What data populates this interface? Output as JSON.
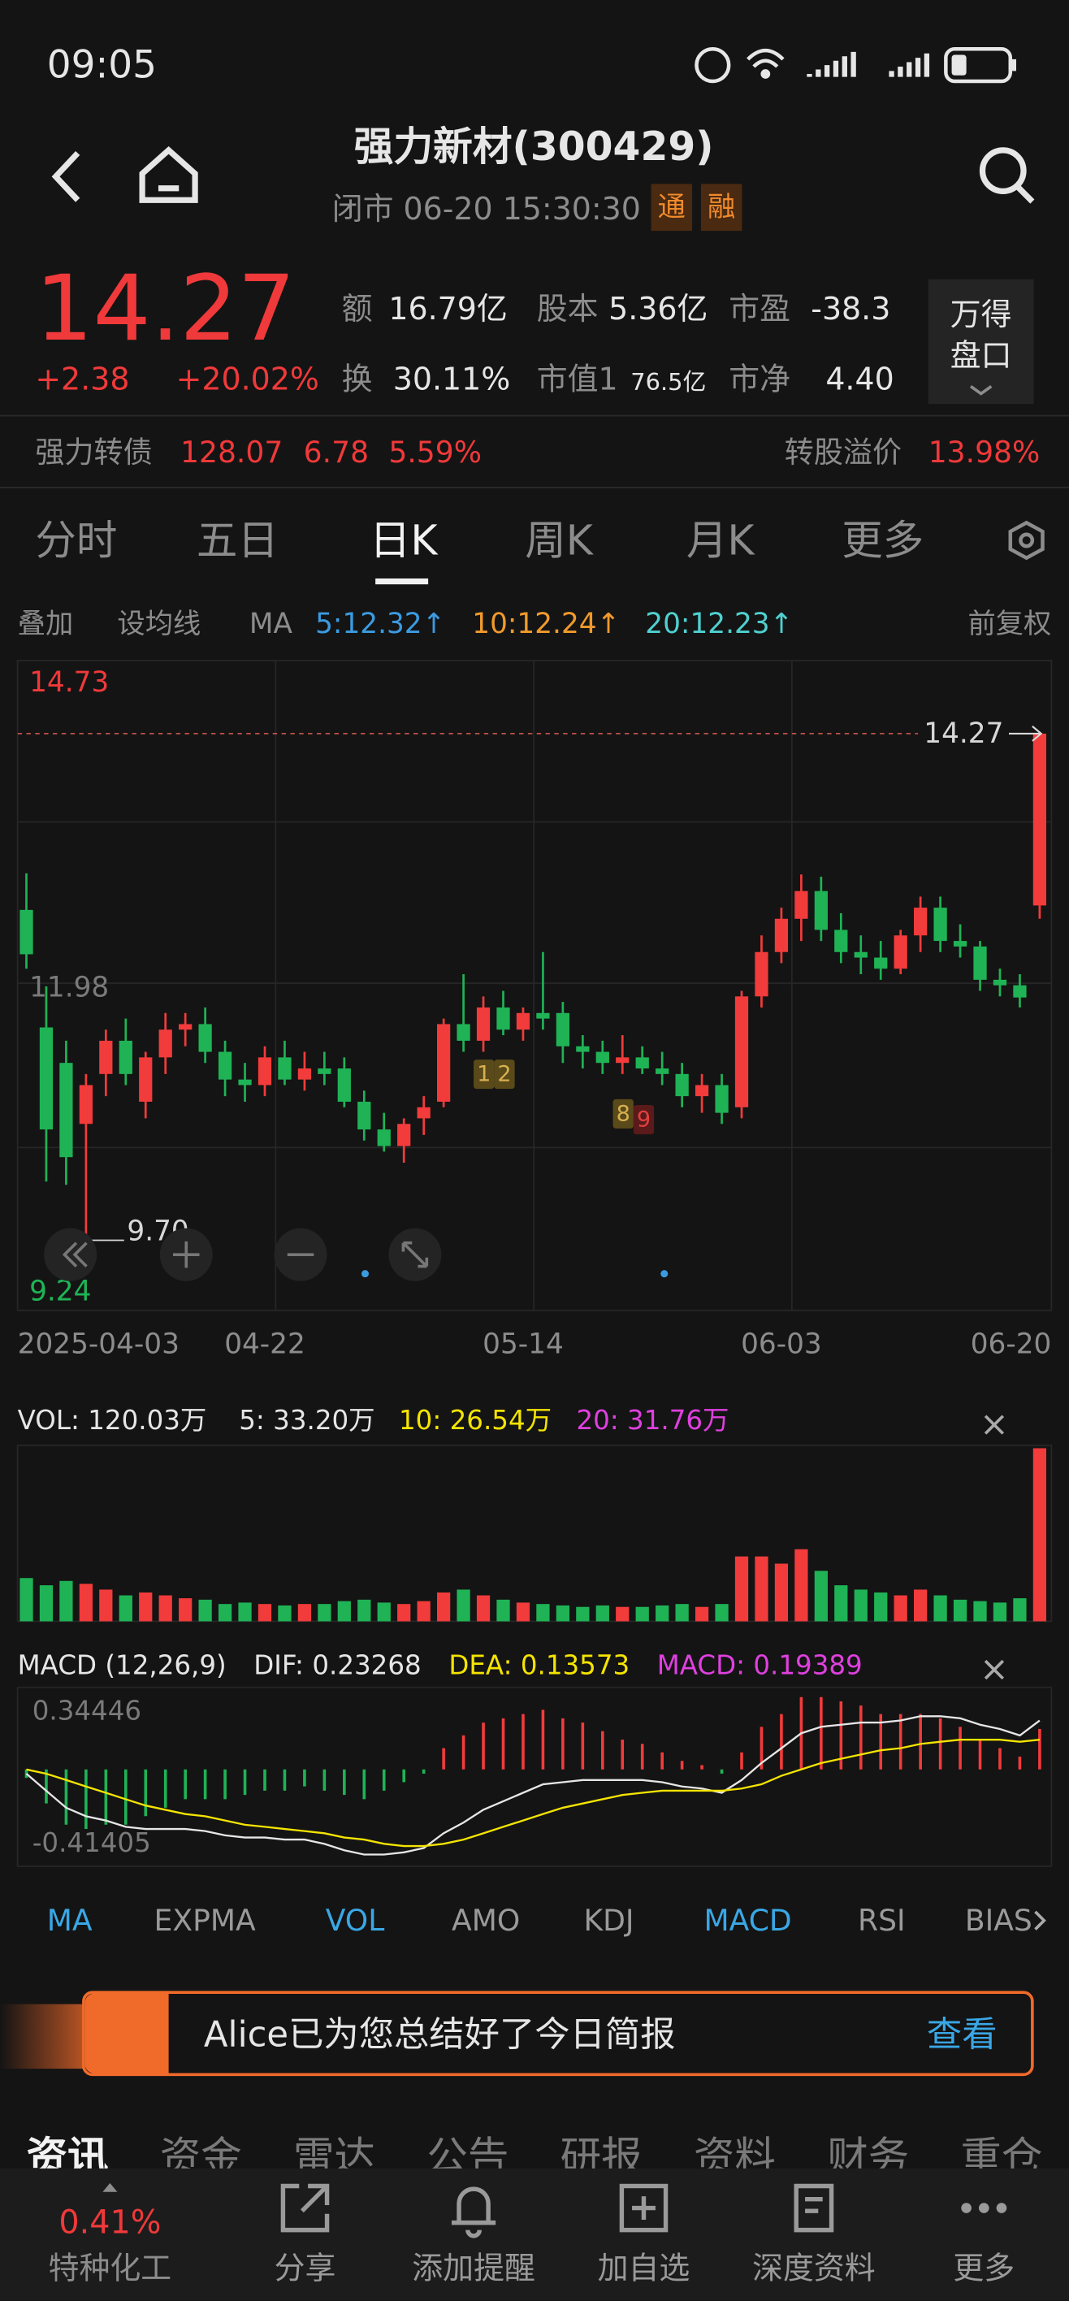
{
  "status": {
    "time": "09:05"
  },
  "header": {
    "title": "强力新材(300429)",
    "subtitle": "闭市 06-20 15:30:30",
    "tags": [
      "通",
      "融"
    ]
  },
  "quote": {
    "price": "14.27",
    "change": "+2.38",
    "change_pct": "+20.02%",
    "stats": [
      {
        "label": "额",
        "value": "16.79亿"
      },
      {
        "label": "股本",
        "value": "5.36亿"
      },
      {
        "label": "市盈",
        "value": "-38.3"
      },
      {
        "label": "换",
        "value": "30.11%"
      },
      {
        "label": "市值1",
        "value": "76.5亿"
      },
      {
        "label": "市净",
        "value": "4.40"
      }
    ],
    "button": [
      "万得",
      "盘口"
    ]
  },
  "bond": {
    "name": "强力转债",
    "price": "128.07",
    "change": "6.78",
    "change_pct": "5.59%",
    "premium_label": "转股溢价",
    "premium": "13.98%"
  },
  "tabs": {
    "items": [
      "分时",
      "五日",
      "日K",
      "周K",
      "月K",
      "更多"
    ],
    "active": 2
  },
  "toolbar": {
    "overlay": "叠加",
    "set_ma": "设均线",
    "ma": "MA",
    "ma_values": [
      "5:12.32↑",
      "10:12.24↑",
      "20:12.23↑"
    ],
    "ma_colors": [
      "#3b9be0",
      "#f09a2c",
      "#4fd0d0"
    ],
    "adjust": "前复权"
  },
  "chart_data": [
    {
      "type": "candlestick",
      "categories": [
        "2025-04-03",
        null,
        null,
        null,
        null,
        null,
        null,
        null,
        null,
        null,
        null,
        null,
        "04-22",
        null,
        null,
        null,
        null,
        null,
        null,
        null,
        null,
        null,
        null,
        null,
        null,
        "05-14",
        null,
        null,
        null,
        null,
        null,
        null,
        null,
        null,
        null,
        null,
        null,
        null,
        "06-03",
        null,
        null,
        null,
        null,
        null,
        null,
        null,
        null,
        null,
        null,
        null,
        null,
        "06-20"
      ],
      "open": [
        12.68,
        11.62,
        11.3,
        10.75,
        11.2,
        11.5,
        10.95,
        11.35,
        11.6,
        11.65,
        11.4,
        11.15,
        11.1,
        11.35,
        11.15,
        11.25,
        11.25,
        10.95,
        10.7,
        10.55,
        10.8,
        10.95,
        11.65,
        11.5,
        11.8,
        11.6,
        11.75,
        11.75,
        11.45,
        11.4,
        11.3,
        11.35,
        11.25,
        11.2,
        11.0,
        11.1,
        10.9,
        11.9,
        12.3,
        12.6,
        12.85,
        12.5,
        12.3,
        12.25,
        12.15,
        12.45,
        12.7,
        12.4,
        12.35,
        12.05,
        12.0,
        12.72
      ],
      "high": [
        13.01,
        11.99,
        11.5,
        11.2,
        11.6,
        11.7,
        11.4,
        11.75,
        11.75,
        11.8,
        11.5,
        11.3,
        11.45,
        11.5,
        11.4,
        11.4,
        11.35,
        11.05,
        10.85,
        10.8,
        11.0,
        11.7,
        12.1,
        11.9,
        11.95,
        11.8,
        12.3,
        11.85,
        11.55,
        11.5,
        11.55,
        11.45,
        11.4,
        11.3,
        11.2,
        11.2,
        11.95,
        12.45,
        12.7,
        13.0,
        12.98,
        12.65,
        12.45,
        12.4,
        12.5,
        12.8,
        12.8,
        12.55,
        12.4,
        12.15,
        12.1,
        14.27
      ],
      "low": [
        12.15,
        10.23,
        10.2,
        9.7,
        11.0,
        11.1,
        10.8,
        11.2,
        11.45,
        11.3,
        11.0,
        10.95,
        11.0,
        11.1,
        11.05,
        11.1,
        10.9,
        10.6,
        10.5,
        10.4,
        10.65,
        10.9,
        11.4,
        11.4,
        11.55,
        11.5,
        11.6,
        11.3,
        11.25,
        11.2,
        11.2,
        11.2,
        11.1,
        10.9,
        10.85,
        10.75,
        10.8,
        11.8,
        12.2,
        12.4,
        12.4,
        12.2,
        12.1,
        12.05,
        12.1,
        12.3,
        12.3,
        12.25,
        11.95,
        11.9,
        11.8,
        12.6
      ],
      "close": [
        12.28,
        10.7,
        10.45,
        11.1,
        11.5,
        11.2,
        11.35,
        11.6,
        11.65,
        11.4,
        11.15,
        11.1,
        11.35,
        11.15,
        11.25,
        11.2,
        10.95,
        10.7,
        10.55,
        10.75,
        10.9,
        11.65,
        11.5,
        11.8,
        11.6,
        11.75,
        11.7,
        11.45,
        11.4,
        11.3,
        11.35,
        11.25,
        11.2,
        11.0,
        11.1,
        10.85,
        11.9,
        12.3,
        12.6,
        12.85,
        12.5,
        12.3,
        12.25,
        12.15,
        12.45,
        12.7,
        12.4,
        12.35,
        12.05,
        12.0,
        11.89,
        14.27
      ],
      "ylim": [
        9.24,
        14.73
      ],
      "yticks": [
        9.24,
        11.98,
        14.73
      ],
      "ytick_colors": [
        "#1fb356",
        "#7a7a7a",
        "#f0393a"
      ],
      "up_color": "#f23b3b",
      "down_color": "#1fb356",
      "last_price": 14.27,
      "low_marker": {
        "value": 9.7,
        "label": "9.70"
      },
      "markers": [
        "1",
        "2",
        "8",
        "9"
      ]
    },
    {
      "type": "bar",
      "name": "VOL",
      "values": [
        30,
        25,
        28,
        26,
        22,
        18,
        20,
        18,
        16,
        15,
        12,
        13,
        12,
        11,
        12,
        12,
        14,
        15,
        13,
        12,
        14,
        20,
        22,
        18,
        15,
        13,
        12,
        11,
        10,
        11,
        10,
        10,
        11,
        12,
        10,
        12,
        45,
        45,
        40,
        50,
        35,
        25,
        22,
        20,
        18,
        22,
        18,
        15,
        14,
        13,
        16,
        120.03
      ],
      "legend": [
        "VOL: 120.03万",
        "5: 33.20万",
        "10: 26.54万",
        "20: 31.76万"
      ],
      "legend_colors": [
        "#e6e6e6",
        "#e6e6e6",
        "#f5e400",
        "#e040e0"
      ],
      "up_color": "#f23b3b",
      "down_color": "#1fb356"
    },
    {
      "type": "macd",
      "title": "MACD (12,26,9)",
      "legend": [
        "DIF: 0.23268",
        "DEA: 0.13573",
        "MACD: 0.19389"
      ],
      "legend_colors": [
        "#e6e6e6",
        "#f5e400",
        "#e040e0"
      ],
      "dif": [
        -0.02,
        -0.1,
        -0.18,
        -0.22,
        -0.24,
        -0.27,
        -0.28,
        -0.28,
        -0.28,
        -0.29,
        -0.31,
        -0.32,
        -0.32,
        -0.33,
        -0.33,
        -0.35,
        -0.38,
        -0.4,
        -0.4,
        -0.39,
        -0.37,
        -0.3,
        -0.25,
        -0.19,
        -0.15,
        -0.11,
        -0.07,
        -0.06,
        -0.05,
        -0.05,
        -0.05,
        -0.05,
        -0.06,
        -0.08,
        -0.09,
        -0.11,
        -0.05,
        0.03,
        0.1,
        0.17,
        0.2,
        0.21,
        0.22,
        0.22,
        0.23,
        0.25,
        0.25,
        0.24,
        0.21,
        0.19,
        0.16,
        0.23
      ],
      "dea": [
        0.0,
        -0.02,
        -0.05,
        -0.08,
        -0.11,
        -0.14,
        -0.17,
        -0.19,
        -0.21,
        -0.22,
        -0.24,
        -0.26,
        -0.27,
        -0.28,
        -0.29,
        -0.3,
        -0.32,
        -0.33,
        -0.35,
        -0.36,
        -0.36,
        -0.35,
        -0.33,
        -0.3,
        -0.27,
        -0.24,
        -0.21,
        -0.18,
        -0.16,
        -0.14,
        -0.12,
        -0.11,
        -0.1,
        -0.1,
        -0.1,
        -0.1,
        -0.09,
        -0.07,
        -0.03,
        0.0,
        0.03,
        0.05,
        0.07,
        0.09,
        0.1,
        0.12,
        0.13,
        0.14,
        0.14,
        0.14,
        0.13,
        0.14
      ],
      "hist": [
        -0.04,
        -0.16,
        -0.26,
        -0.28,
        -0.26,
        -0.26,
        -0.22,
        -0.18,
        -0.14,
        -0.14,
        -0.14,
        -0.12,
        -0.1,
        -0.1,
        -0.08,
        -0.1,
        -0.12,
        -0.14,
        -0.1,
        -0.06,
        -0.02,
        0.1,
        0.16,
        0.22,
        0.24,
        0.26,
        0.28,
        0.24,
        0.22,
        0.18,
        0.14,
        0.12,
        0.08,
        0.04,
        0.02,
        -0.02,
        0.08,
        0.2,
        0.26,
        0.34,
        0.34,
        0.32,
        0.3,
        0.26,
        0.26,
        0.26,
        0.24,
        0.2,
        0.14,
        0.1,
        0.06,
        0.19
      ],
      "ylim": [
        -0.41405,
        0.34446
      ],
      "yticks": [
        -0.41405,
        0.34446
      ],
      "dif_color": "#e6e6e6",
      "dea_color": "#f5e400",
      "up_color": "#f23b3b",
      "down_color": "#1fb356"
    }
  ],
  "indicator_tabs": {
    "items": [
      "MA",
      "EXPMA",
      "VOL",
      "AMO",
      "KDJ",
      "MACD",
      "RSI",
      "BIAS"
    ],
    "active": [
      0,
      2,
      5
    ]
  },
  "banner": {
    "text": "Alice已为您总结好了今日简报",
    "action": "查看"
  },
  "news_tabs": [
    "资讯",
    "资金",
    "雷达",
    "公告",
    "研报",
    "资料",
    "财务",
    "重仓"
  ],
  "nav": {
    "sector_change": "0.41%",
    "sector": "特种化工",
    "items": [
      "分享",
      "添加提醒",
      "加自选",
      "深度资料",
      "更多"
    ]
  }
}
